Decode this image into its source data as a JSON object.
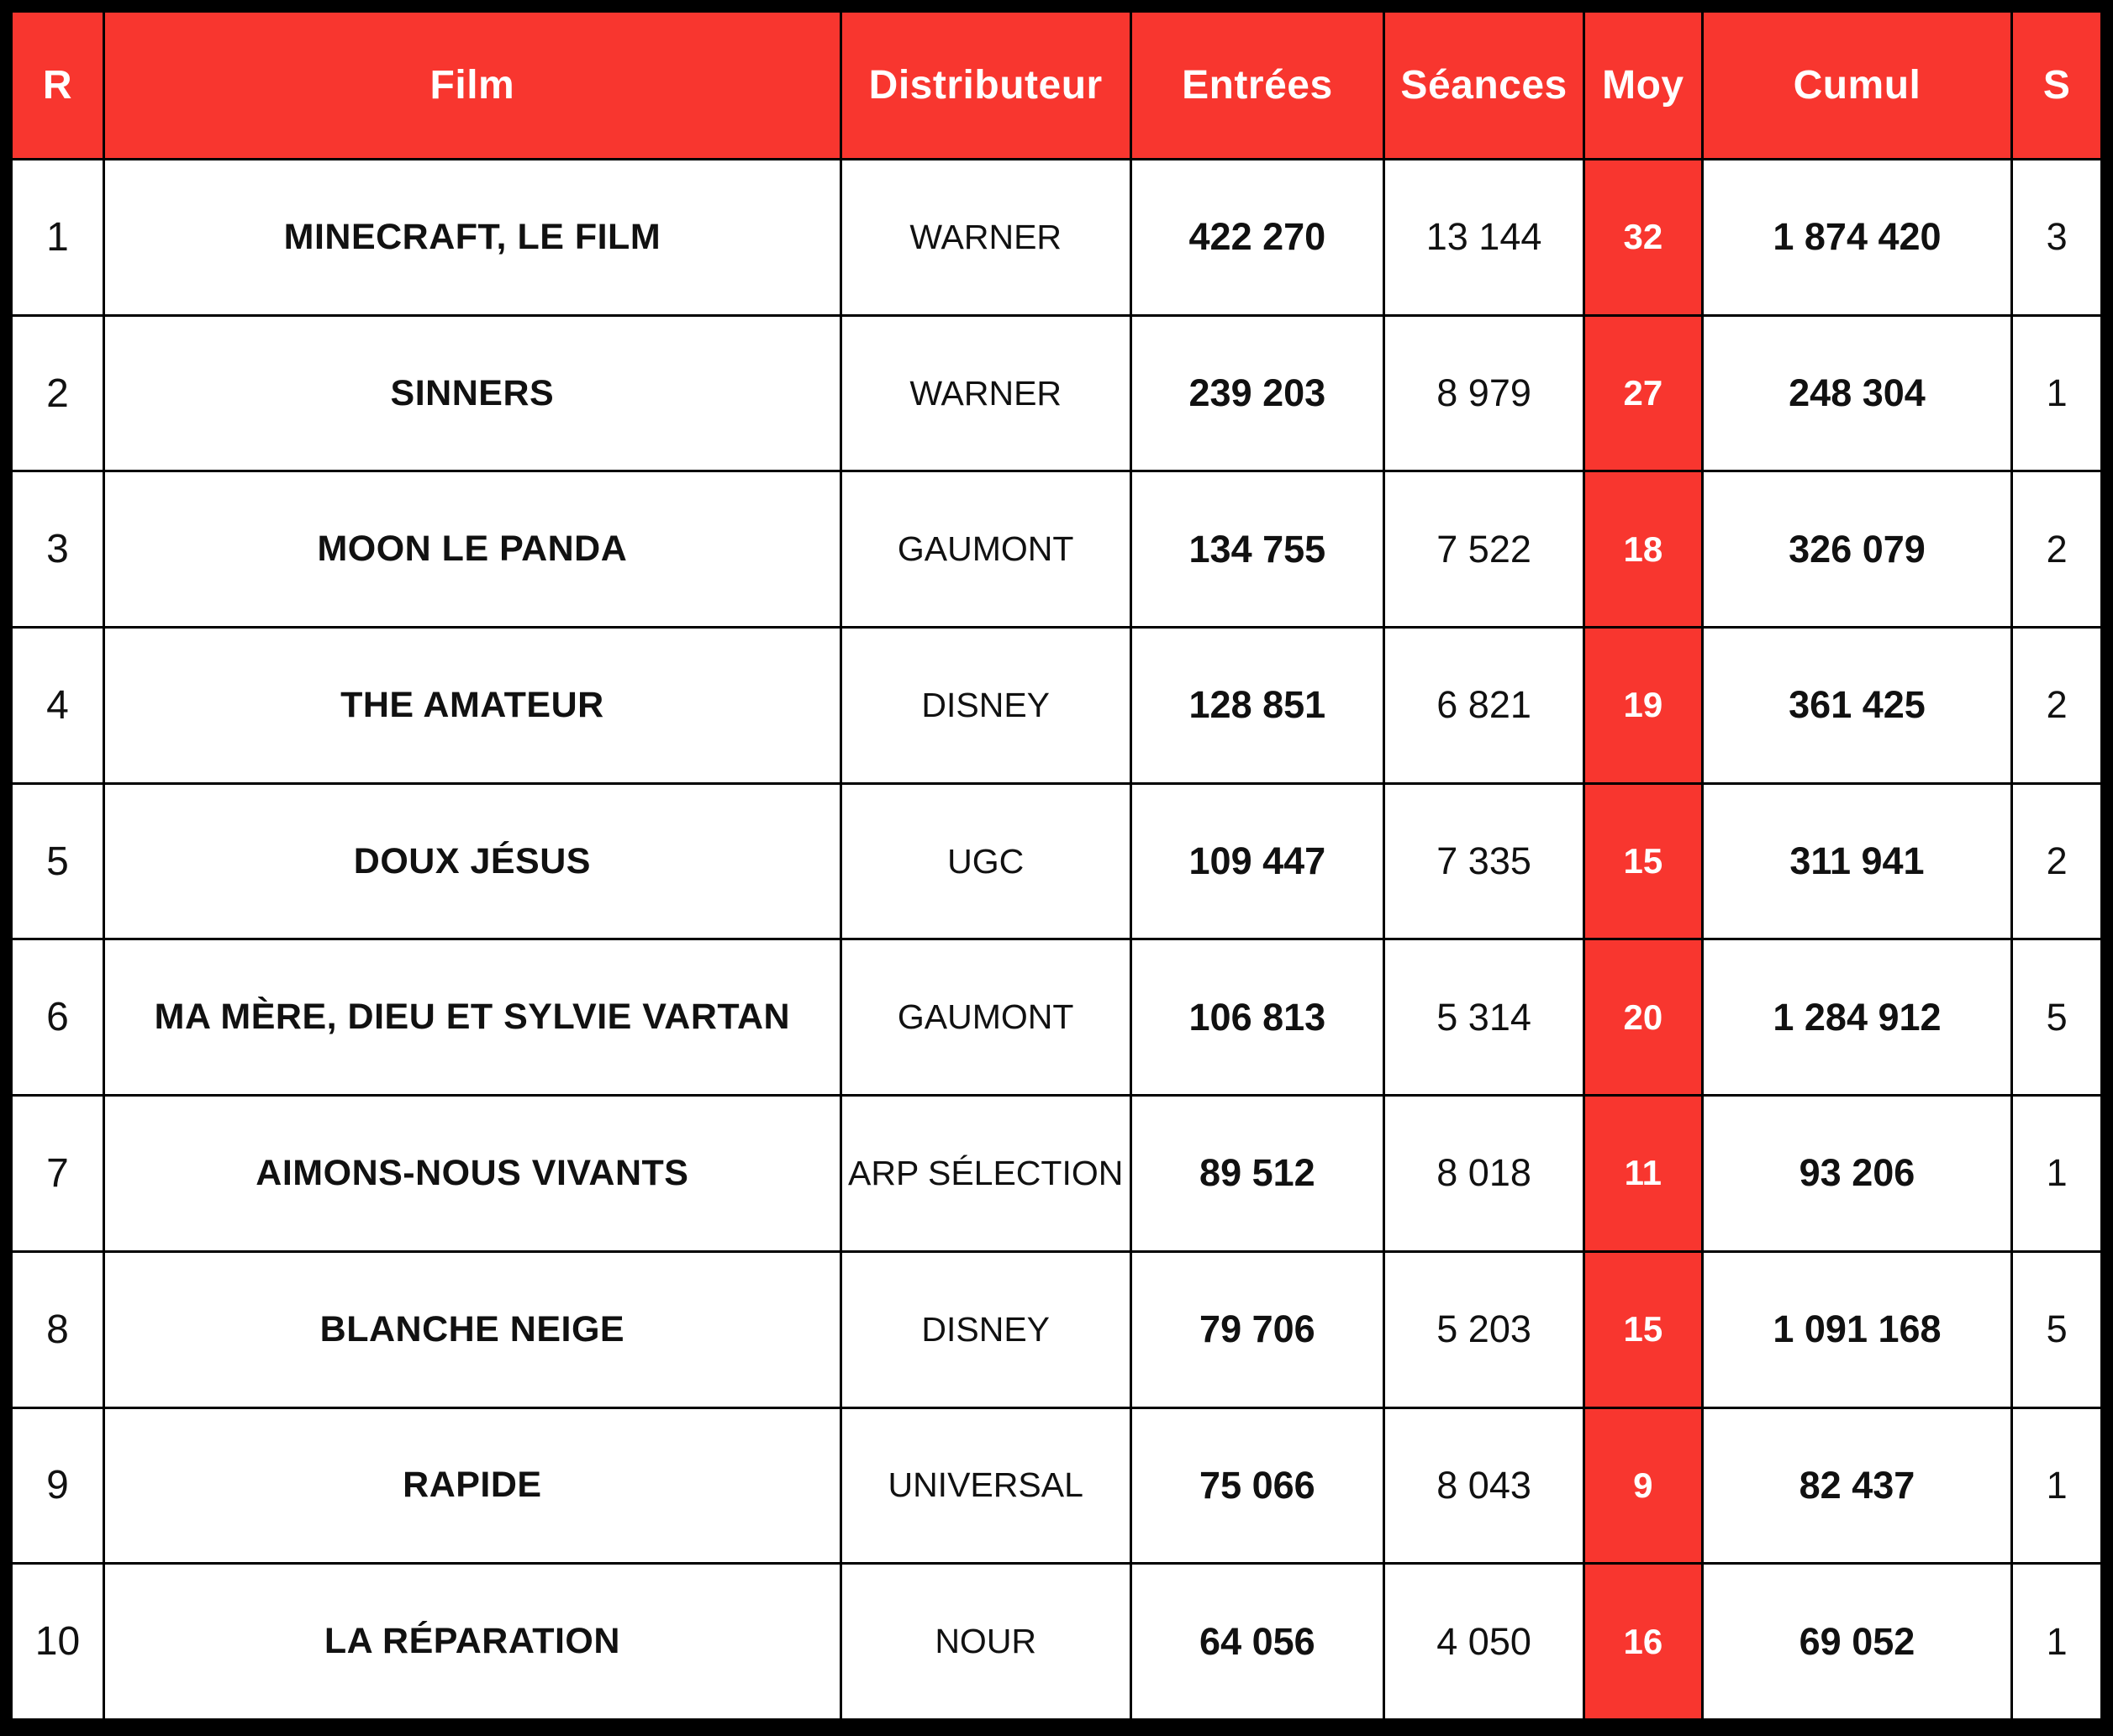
{
  "colors": {
    "header_red": "#F8362F",
    "header_text": "#FFFFFF",
    "grid_line": "#000000",
    "cell_background": "#FFFFFF",
    "body_text": "#111111"
  },
  "table": {
    "columns": [
      {
        "label": "R"
      },
      {
        "label": "Film"
      },
      {
        "label": "Distributeur"
      },
      {
        "label": "Entrées"
      },
      {
        "label": "Séances"
      },
      {
        "label": "Moy"
      },
      {
        "label": "Cumul"
      },
      {
        "label": "S"
      }
    ],
    "rows": [
      {
        "rank": "1",
        "film": "MINECRAFT, LE FILM",
        "distributor": "WARNER",
        "entries": "422 270",
        "screenings": "13 144",
        "average": "32",
        "cumulative": "1 874 420",
        "weeks": "3"
      },
      {
        "rank": "2",
        "film": "SINNERS",
        "distributor": "WARNER",
        "entries": "239 203",
        "screenings": "8 979",
        "average": "27",
        "cumulative": "248 304",
        "weeks": "1"
      },
      {
        "rank": "3",
        "film": "MOON LE PANDA",
        "distributor": "GAUMONT",
        "entries": "134 755",
        "screenings": "7 522",
        "average": "18",
        "cumulative": "326 079",
        "weeks": "2"
      },
      {
        "rank": "4",
        "film": "THE AMATEUR",
        "distributor": "DISNEY",
        "entries": "128 851",
        "screenings": "6 821",
        "average": "19",
        "cumulative": "361 425",
        "weeks": "2"
      },
      {
        "rank": "5",
        "film": "DOUX JÉSUS",
        "distributor": "UGC",
        "entries": "109 447",
        "screenings": "7 335",
        "average": "15",
        "cumulative": "311 941",
        "weeks": "2"
      },
      {
        "rank": "6",
        "film": "MA MÈRE, DIEU ET SYLVIE VARTAN",
        "distributor": "GAUMONT",
        "entries": "106 813",
        "screenings": "5 314",
        "average": "20",
        "cumulative": "1 284 912",
        "weeks": "5"
      },
      {
        "rank": "7",
        "film": "AIMONS-NOUS VIVANTS",
        "distributor": "ARP SÉLECTION",
        "entries": "89 512",
        "screenings": "8 018",
        "average": "11",
        "cumulative": "93 206",
        "weeks": "1"
      },
      {
        "rank": "8",
        "film": "BLANCHE NEIGE",
        "distributor": "DISNEY",
        "entries": "79 706",
        "screenings": "5 203",
        "average": "15",
        "cumulative": "1 091 168",
        "weeks": "5"
      },
      {
        "rank": "9",
        "film": "RAPIDE",
        "distributor": "UNIVERSAL",
        "entries": "75 066",
        "screenings": "8 043",
        "average": "9",
        "cumulative": "82 437",
        "weeks": "1"
      },
      {
        "rank": "10",
        "film": "LA RÉPARATION",
        "distributor": "NOUR",
        "entries": "64 056",
        "screenings": "4 050",
        "average": "16",
        "cumulative": "69 052",
        "weeks": "1"
      }
    ]
  }
}
